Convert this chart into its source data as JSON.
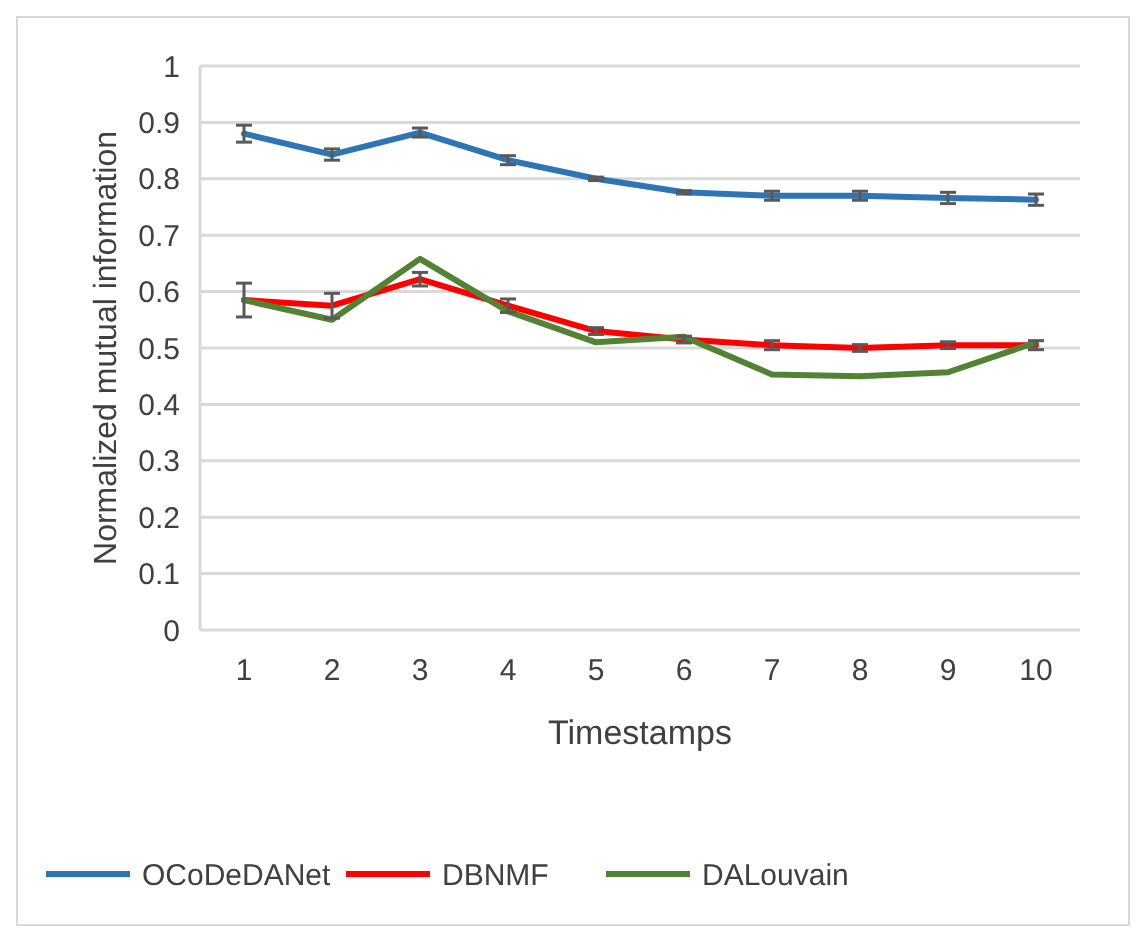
{
  "chart_data": {
    "type": "line",
    "xlabel": "Timestamps",
    "ylabel": "Normalized mutual information",
    "categories": [
      "1",
      "2",
      "3",
      "4",
      "5",
      "6",
      "7",
      "8",
      "9",
      "10"
    ],
    "series": [
      {
        "name": "OCoDeDANet",
        "color": "#2e75b6",
        "values": [
          0.88,
          0.843,
          0.882,
          0.833,
          0.8,
          0.776,
          0.77,
          0.77,
          0.766,
          0.763
        ],
        "errors": [
          0.015,
          0.01,
          0.008,
          0.008,
          0.003,
          0.003,
          0.008,
          0.008,
          0.01,
          0.01
        ]
      },
      {
        "name": "DBNMF",
        "color": "#ff0000",
        "values": [
          0.585,
          0.575,
          0.622,
          0.575,
          0.53,
          0.515,
          0.505,
          0.5,
          0.505,
          0.505
        ],
        "errors": [
          0.03,
          0.022,
          0.012,
          0.012,
          0.006,
          0.006,
          0.008,
          0.006,
          0.006,
          0.008
        ]
      },
      {
        "name": "DALouvain",
        "color": "#548235",
        "values": [
          0.585,
          0.55,
          0.658,
          0.565,
          0.51,
          0.52,
          0.453,
          0.45,
          0.457,
          0.51
        ]
      }
    ],
    "ylim": [
      0,
      1
    ],
    "yticks": [
      0,
      0.1,
      0.2,
      0.3,
      0.4,
      0.5,
      0.6,
      0.7,
      0.8,
      0.9,
      1
    ],
    "grid": "y",
    "legend": "bottom",
    "marker": "none",
    "line_style": "solid"
  }
}
